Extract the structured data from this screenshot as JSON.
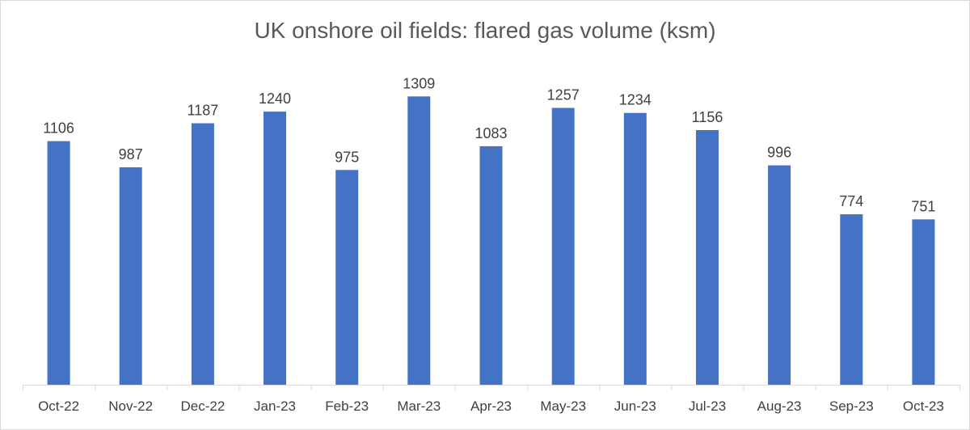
{
  "chart_data": {
    "type": "bar",
    "title": "UK onshore oil fields: flared gas volume (ksm)",
    "categories": [
      "Oct-22",
      "Nov-22",
      "Dec-22",
      "Jan-23",
      "Feb-23",
      "Mar-23",
      "Apr-23",
      "May-23",
      "Jun-23",
      "Jul-23",
      "Aug-23",
      "Sep-23",
      "Oct-23"
    ],
    "values": [
      1106,
      987,
      1187,
      1240,
      975,
      1309,
      1083,
      1257,
      1234,
      1156,
      996,
      774,
      751
    ],
    "data_labels": [
      "1106",
      "987",
      "1187",
      "1240",
      "975",
      "1309",
      "1083",
      "1257",
      "1234",
      "1156",
      "996",
      "774",
      "751"
    ],
    "xlabel": "",
    "ylabel": "",
    "ylim": [
      0,
      1400
    ],
    "grid": false,
    "legend": "none",
    "bar_color": "#4472c4",
    "axis_color": "#d9d9d9"
  }
}
